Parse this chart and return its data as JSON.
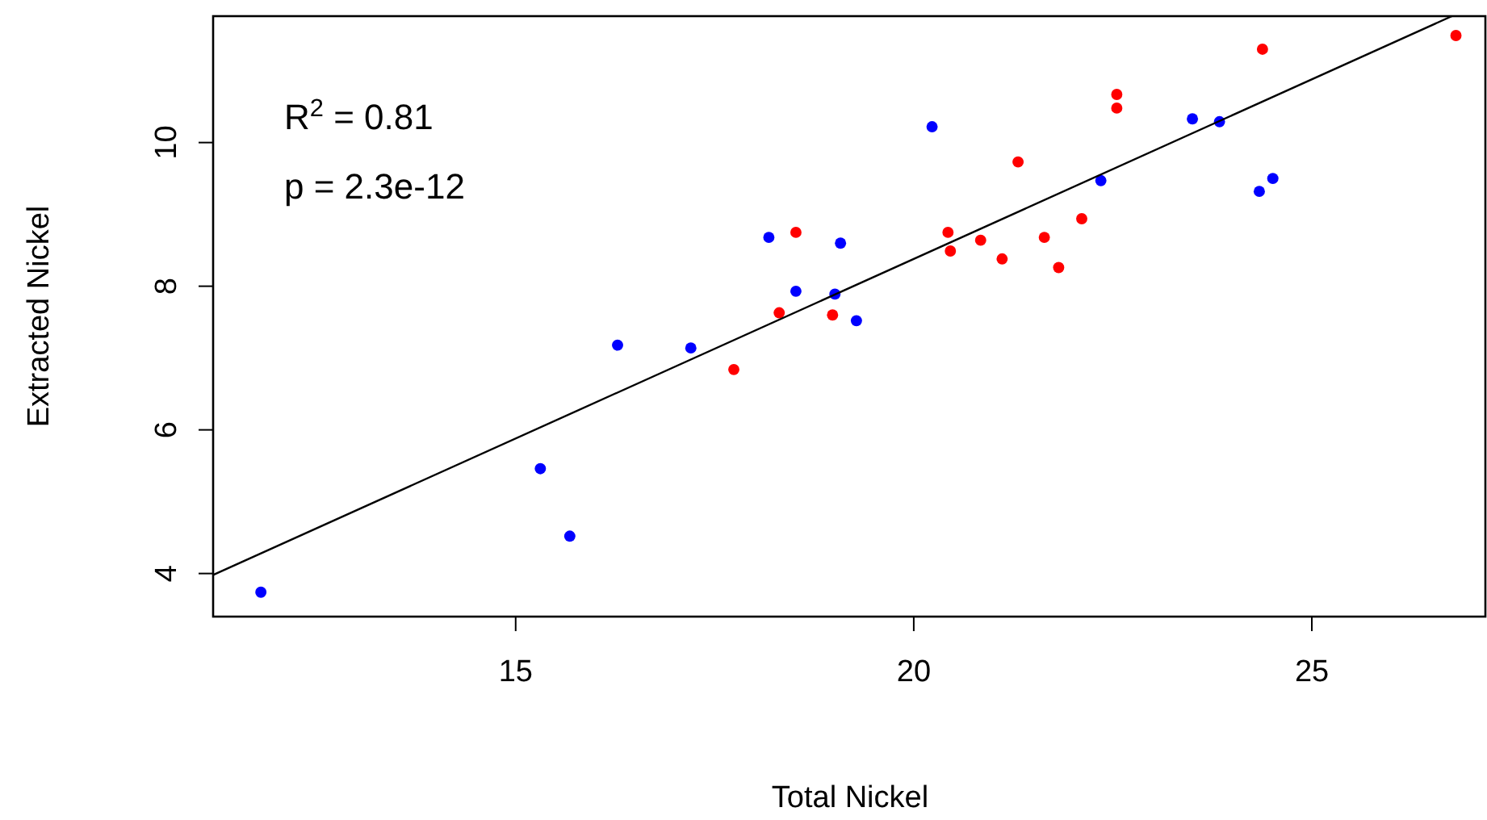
{
  "chart_data": {
    "type": "scatter",
    "xlabel": "Total Nickel",
    "ylabel": "Extracted Nickel",
    "xlim": [
      11.2,
      27.2
    ],
    "ylim": [
      3.4,
      11.76
    ],
    "xticks": [
      15,
      20,
      25
    ],
    "yticks": [
      4,
      6,
      8,
      10
    ],
    "annotations": [
      "R$^{2}$ = 0.81",
      "p = 2.3e-12"
    ],
    "series": [
      {
        "color": "#0000ff",
        "marker": "circle",
        "x": [
          11.8,
          15.31,
          15.68,
          16.28,
          17.2,
          18.18,
          18.52,
          19.01,
          19.08,
          19.28,
          20.23,
          22.35,
          23.5,
          23.84,
          24.34,
          24.51
        ],
        "values": [
          3.74,
          5.46,
          4.52,
          7.18,
          7.14,
          8.68,
          7.93,
          7.89,
          8.6,
          7.52,
          10.22,
          9.47,
          10.33,
          10.29,
          9.32,
          9.5
        ]
      },
      {
        "color": "#ff0000",
        "marker": "circle",
        "x": [
          17.74,
          18.31,
          18.52,
          18.98,
          20.43,
          20.46,
          20.84,
          21.11,
          21.31,
          21.64,
          21.82,
          22.11,
          22.55,
          22.55,
          24.38,
          26.81
        ],
        "values": [
          6.84,
          7.63,
          8.75,
          7.6,
          8.75,
          8.49,
          8.64,
          8.38,
          9.73,
          8.68,
          8.26,
          8.94,
          10.67,
          10.48,
          11.3,
          11.49
        ]
      },
      {
        "type": "line",
        "color": "#000000",
        "marker": "none",
        "x": [
          11.2,
          26.76
        ],
        "values": [
          3.98,
          11.76
        ]
      }
    ]
  }
}
